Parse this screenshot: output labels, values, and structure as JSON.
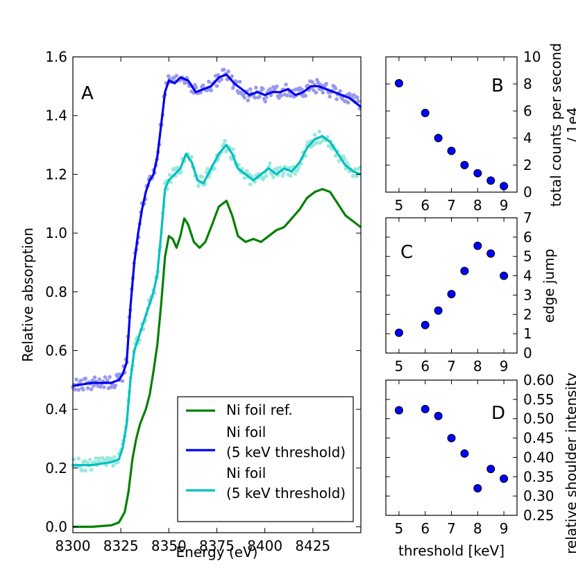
{
  "chart_data": [
    {
      "id": "A",
      "type": "line",
      "panel_label": "A",
      "xlabel": "Energy (eV)",
      "ylabel": "Relative absorption",
      "xlim": [
        8300,
        8450
      ],
      "ylim": [
        -0.02,
        1.6
      ],
      "xticks": [
        8300,
        8325,
        8350,
        8375,
        8400,
        8425
      ],
      "yticks": [
        0.0,
        0.2,
        0.4,
        0.6,
        0.8,
        1.0,
        1.2,
        1.4,
        1.6
      ],
      "xtick_labels": [
        "8300",
        "8325",
        "8350",
        "8375",
        "8400",
        "8425"
      ],
      "ytick_labels": [
        "0.0",
        "0.2",
        "0.4",
        "0.6",
        "0.8",
        "1.0",
        "1.2",
        "1.4",
        "1.6"
      ],
      "legend_position": "lower-right",
      "series": [
        {
          "name": "Ni foil ref.",
          "color": "#008000",
          "x": [
            8300,
            8310,
            8320,
            8324,
            8327,
            8329,
            8331,
            8333,
            8335,
            8338,
            8340,
            8342,
            8344,
            8346,
            8348,
            8350,
            8352,
            8354,
            8356,
            8358,
            8360,
            8363,
            8366,
            8369,
            8372,
            8376,
            8380,
            8383,
            8386,
            8390,
            8394,
            8398,
            8402,
            8406,
            8410,
            8414,
            8418,
            8422,
            8426,
            8430,
            8434,
            8438,
            8442,
            8446,
            8450
          ],
          "y": [
            0.0,
            0.0,
            0.005,
            0.015,
            0.05,
            0.12,
            0.23,
            0.3,
            0.35,
            0.4,
            0.45,
            0.53,
            0.62,
            0.76,
            0.92,
            0.99,
            0.98,
            0.95,
            0.99,
            1.05,
            1.03,
            0.97,
            0.95,
            0.97,
            1.02,
            1.09,
            1.11,
            1.06,
            0.99,
            0.97,
            0.98,
            0.97,
            0.99,
            1.01,
            1.02,
            1.05,
            1.08,
            1.12,
            1.14,
            1.15,
            1.14,
            1.1,
            1.06,
            1.04,
            1.02
          ]
        },
        {
          "name": "Ni foil\n(5 keV threshold)",
          "color": "#0000ee",
          "scatter_color": "#9999ee",
          "x": [
            8300,
            8310,
            8320,
            8324,
            8326,
            8328,
            8330,
            8332,
            8334,
            8336,
            8338,
            8340,
            8342,
            8344,
            8346,
            8348,
            8350,
            8353,
            8356,
            8360,
            8364,
            8368,
            8372,
            8376,
            8380,
            8384,
            8388,
            8392,
            8396,
            8400,
            8404,
            8408,
            8412,
            8416,
            8420,
            8424,
            8428,
            8432,
            8436,
            8440,
            8444,
            8448,
            8450
          ],
          "y": [
            0.48,
            0.49,
            0.49,
            0.5,
            0.52,
            0.56,
            0.75,
            0.9,
            1.0,
            1.08,
            1.14,
            1.18,
            1.2,
            1.26,
            1.37,
            1.48,
            1.52,
            1.51,
            1.53,
            1.52,
            1.48,
            1.49,
            1.5,
            1.53,
            1.54,
            1.51,
            1.49,
            1.47,
            1.48,
            1.47,
            1.48,
            1.48,
            1.49,
            1.47,
            1.48,
            1.5,
            1.5,
            1.49,
            1.48,
            1.47,
            1.46,
            1.44,
            1.43
          ]
        },
        {
          "name": "Ni foil\n(5 keV threshold)",
          "color": "#00bfbf",
          "scatter_color": "#99e8dd",
          "x": [
            8300,
            8310,
            8320,
            8324,
            8326,
            8328,
            8330,
            8332,
            8334,
            8336,
            8338,
            8340,
            8342,
            8344,
            8346,
            8348,
            8350,
            8353,
            8356,
            8359,
            8362,
            8365,
            8368,
            8372,
            8376,
            8380,
            8383,
            8386,
            8390,
            8394,
            8398,
            8402,
            8406,
            8410,
            8414,
            8418,
            8422,
            8426,
            8430,
            8434,
            8438,
            8442,
            8446,
            8450
          ],
          "y": [
            0.21,
            0.21,
            0.22,
            0.23,
            0.27,
            0.35,
            0.5,
            0.6,
            0.64,
            0.68,
            0.72,
            0.76,
            0.8,
            0.86,
            1.0,
            1.15,
            1.18,
            1.2,
            1.22,
            1.27,
            1.24,
            1.18,
            1.17,
            1.22,
            1.27,
            1.3,
            1.27,
            1.22,
            1.2,
            1.18,
            1.2,
            1.22,
            1.2,
            1.22,
            1.21,
            1.24,
            1.29,
            1.32,
            1.33,
            1.31,
            1.27,
            1.23,
            1.21,
            1.2
          ]
        }
      ]
    },
    {
      "id": "B",
      "type": "scatter",
      "panel_label": "B",
      "ylabel": "total counts per second\n/ 1e4",
      "xlim": [
        4.5,
        9.5
      ],
      "ylim": [
        0,
        10
      ],
      "xticks": [
        5,
        6,
        7,
        8,
        9
      ],
      "yticks": [
        0,
        2,
        4,
        6,
        8,
        10
      ],
      "xtick_labels": [
        "5",
        "6",
        "7",
        "8",
        "9"
      ],
      "ytick_labels": [
        "0",
        "2",
        "4",
        "6",
        "8",
        "10"
      ],
      "x": [
        5,
        6,
        6.5,
        7,
        7.5,
        8,
        8.5,
        9
      ],
      "y": [
        8.05,
        5.85,
        4.0,
        3.05,
        2.0,
        1.4,
        0.85,
        0.45
      ]
    },
    {
      "id": "C",
      "type": "scatter",
      "panel_label": "C",
      "ylabel": "edge jump",
      "xlim": [
        4.5,
        9.5
      ],
      "ylim": [
        0,
        7
      ],
      "xticks": [
        5,
        6,
        7,
        8,
        9
      ],
      "yticks": [
        0,
        1,
        2,
        3,
        4,
        5,
        6,
        7
      ],
      "xtick_labels": [
        "5",
        "6",
        "7",
        "8",
        "9"
      ],
      "ytick_labels": [
        "0",
        "1",
        "2",
        "3",
        "4",
        "5",
        "6",
        "7"
      ],
      "x": [
        5,
        6,
        6.5,
        7,
        7.5,
        8,
        8.5,
        9
      ],
      "y": [
        1.05,
        1.45,
        2.2,
        3.05,
        4.25,
        5.55,
        5.15,
        4.0
      ]
    },
    {
      "id": "D",
      "type": "scatter",
      "panel_label": "D",
      "xlabel": "threshold [keV]",
      "ylabel": "relative shoulder intensity",
      "xlim": [
        4.5,
        9.5
      ],
      "ylim": [
        0.25,
        0.6
      ],
      "xticks": [
        5,
        6,
        7,
        8,
        9
      ],
      "yticks": [
        0.25,
        0.3,
        0.35,
        0.4,
        0.45,
        0.5,
        0.55,
        0.6
      ],
      "xtick_labels": [
        "5",
        "6",
        "7",
        "8",
        "9"
      ],
      "ytick_labels": [
        "0.25",
        "0.30",
        "0.35",
        "0.40",
        "0.45",
        "0.50",
        "0.55",
        "0.60"
      ],
      "x": [
        5,
        6,
        6.5,
        7,
        7.5,
        8,
        8.5,
        9
      ],
      "y": [
        0.522,
        0.525,
        0.507,
        0.45,
        0.41,
        0.32,
        0.37,
        0.345
      ]
    }
  ],
  "colors": {
    "marker_fill": "#0000ff",
    "marker_edge": "#000000",
    "frame": "#000000"
  }
}
